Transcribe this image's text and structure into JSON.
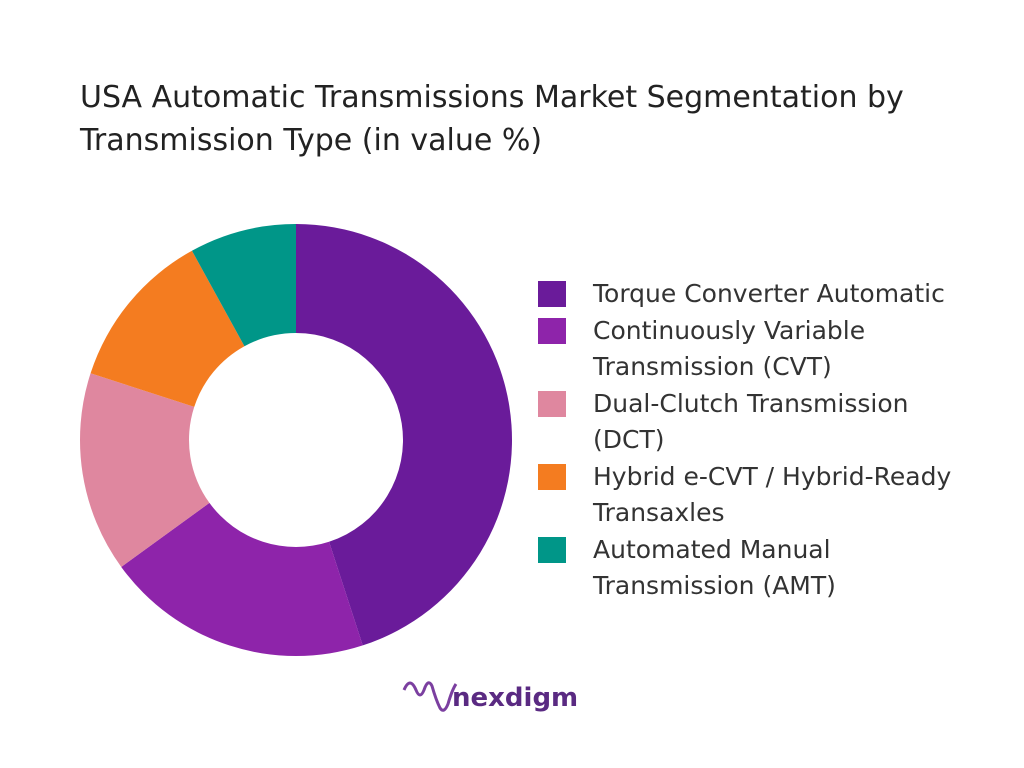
{
  "chart_data": {
    "type": "donut",
    "title": "USA Automatic Transmissions Market Segmentation by Transmission Type (in value %)",
    "categories": [
      "Torque Converter Automatic",
      "Continuously Variable Transmission (CVT)",
      "Dual-Clutch Transmission (DCT)",
      "Hybrid e-CVT / Hybrid-Ready Transaxles",
      "Automated Manual Transmission (AMT)"
    ],
    "values": [
      45,
      20,
      15,
      12,
      8
    ],
    "colors": [
      "#6a1b9a",
      "#8e24aa",
      "#df879f",
      "#f47c20",
      "#009688"
    ],
    "legend": "right"
  },
  "logo": "nexdigm"
}
